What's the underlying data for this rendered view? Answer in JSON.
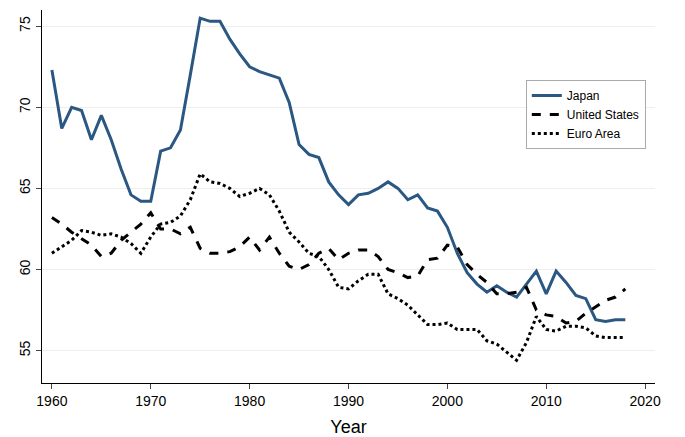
{
  "chart_data": {
    "type": "line",
    "x_label": "Year",
    "x": [
      1960,
      1961,
      1962,
      1963,
      1964,
      1965,
      1966,
      1967,
      1968,
      1969,
      1970,
      1971,
      1972,
      1973,
      1974,
      1975,
      1976,
      1977,
      1978,
      1979,
      1980,
      1981,
      1982,
      1983,
      1984,
      1985,
      1986,
      1987,
      1988,
      1989,
      1990,
      1991,
      1992,
      1993,
      1994,
      1995,
      1996,
      1997,
      1998,
      1999,
      2000,
      2001,
      2002,
      2003,
      2004,
      2005,
      2006,
      2007,
      2008,
      2009,
      2010,
      2011,
      2012,
      2013,
      2014,
      2015,
      2016,
      2017,
      2018
    ],
    "series": [
      {
        "name": "Japan",
        "color": "#2b5783",
        "line_style": "solid",
        "values": [
          72.3,
          68.7,
          70.0,
          69.8,
          68.0,
          69.5,
          68.0,
          66.2,
          64.6,
          64.2,
          64.2,
          67.3,
          67.5,
          68.6,
          72.0,
          75.5,
          75.3,
          75.3,
          74.2,
          73.3,
          72.5,
          72.2,
          72.0,
          71.8,
          70.3,
          67.7,
          67.1,
          66.9,
          65.4,
          64.6,
          64.0,
          64.6,
          64.7,
          65.0,
          65.4,
          65.0,
          64.3,
          64.6,
          63.8,
          63.6,
          62.6,
          61.0,
          59.8,
          59.1,
          58.6,
          59.0,
          58.6,
          58.3,
          59.1,
          59.9,
          58.5,
          59.9,
          59.2,
          58.4,
          58.2,
          56.9,
          56.8,
          56.9,
          56.9
        ]
      },
      {
        "name": "United States",
        "color": "#000000",
        "line_style": "dash",
        "values": [
          63.2,
          62.8,
          62.3,
          61.9,
          61.5,
          60.8,
          61.0,
          61.8,
          62.3,
          62.8,
          63.5,
          62.5,
          62.5,
          62.2,
          62.6,
          61.3,
          61.0,
          61.0,
          61.1,
          61.4,
          62.0,
          61.2,
          62.0,
          61.0,
          60.2,
          60.0,
          60.3,
          61.0,
          61.3,
          60.6,
          61.0,
          61.2,
          61.2,
          60.8,
          60.0,
          59.8,
          59.5,
          59.6,
          60.6,
          60.7,
          61.5,
          61.4,
          60.3,
          59.7,
          59.2,
          58.5,
          58.5,
          58.6,
          58.9,
          57.5,
          57.2,
          57.1,
          56.7,
          56.8,
          57.3,
          57.7,
          58.1,
          58.3,
          58.8
        ]
      },
      {
        "name": "Euro Area",
        "color": "#000000",
        "line_style": "dot",
        "values": [
          61.0,
          61.4,
          61.8,
          62.4,
          62.3,
          62.1,
          62.2,
          62.0,
          61.6,
          61.0,
          62.0,
          62.8,
          62.9,
          63.3,
          64.3,
          65.9,
          65.4,
          65.3,
          65.0,
          64.5,
          64.7,
          65.0,
          64.6,
          63.6,
          62.3,
          61.7,
          61.0,
          60.8,
          60.0,
          58.9,
          58.8,
          59.3,
          59.7,
          59.7,
          58.5,
          58.2,
          57.8,
          57.2,
          56.6,
          56.6,
          56.7,
          56.3,
          56.3,
          56.3,
          55.6,
          55.4,
          54.9,
          54.4,
          55.5,
          57.1,
          56.3,
          56.2,
          56.5,
          56.5,
          56.4,
          55.9,
          55.8,
          55.8,
          55.8
        ]
      }
    ],
    "xlim": [
      1959,
      2021
    ],
    "xticks": [
      1960,
      1970,
      1980,
      1990,
      2000,
      2010,
      2020
    ],
    "ylim": [
      53,
      76
    ],
    "yticks": [
      55,
      60,
      65,
      70,
      75
    ],
    "grid": true,
    "legend": "right"
  }
}
